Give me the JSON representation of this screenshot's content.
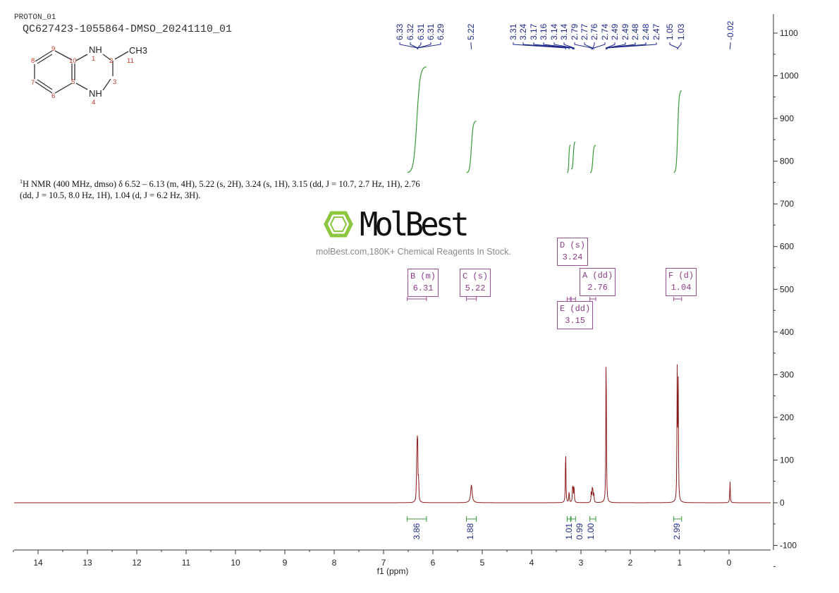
{
  "header": {
    "experiment": "PROTON_01",
    "sample": "QC627423-1055864-DMSO_20241110_01"
  },
  "structure": {
    "labels": [
      "NH",
      "NH",
      "CH3"
    ],
    "atom_numbers": [
      "1",
      "2",
      "3",
      "4",
      "5",
      "6",
      "7",
      "8",
      "9",
      "10",
      "11"
    ]
  },
  "description": {
    "nucleus_sup": "1",
    "text": "H NMR (400 MHz, dmso) δ 6.52 – 6.13 (m, 4H), 5.22 (s, 2H), 3.24 (s, 1H), 3.15 (dd, J = 10.7, 2.7 Hz, 1H), 2.76 (dd, J = 10.5, 8.0 Hz, 1H), 1.04 (d, J = 6.2 Hz, 3H)."
  },
  "watermark": {
    "logo_text": "MolBest",
    "tagline": "molBest.com,180K+ Chemical Reagents In Stock.",
    "color": "#8cc63f"
  },
  "chart_data": {
    "type": "line",
    "xlabel": "f1 (ppm)",
    "xlim": [
      14.5,
      -0.85
    ],
    "x_reversed": true,
    "ylim": [
      -100,
      1150
    ],
    "x_ticks": [
      "14",
      "13",
      "12",
      "11",
      "10",
      "9",
      "8",
      "7",
      "6",
      "5",
      "4",
      "3",
      "2",
      "1",
      "0"
    ],
    "y_ticks": [
      "1100",
      "1000",
      "900",
      "800",
      "700",
      "600",
      "500",
      "400",
      "300",
      "200",
      "100",
      "0",
      "-100"
    ],
    "grid": false,
    "line_color": "#8b1a1a",
    "integral_color": "#3a9a3a",
    "label_color": "#1f2a8c",
    "peaks": [
      {
        "ppm": 6.33,
        "height": 60
      },
      {
        "ppm": 6.32,
        "height": 90
      },
      {
        "ppm": 6.31,
        "height": 110
      },
      {
        "ppm": 6.31,
        "height": 40
      },
      {
        "ppm": 6.29,
        "height": 55
      },
      {
        "ppm": 5.22,
        "height": 42
      },
      {
        "ppm": 3.31,
        "height": 133
      },
      {
        "ppm": 3.24,
        "height": 28
      },
      {
        "ppm": 3.17,
        "height": 30
      },
      {
        "ppm": 3.16,
        "height": 30
      },
      {
        "ppm": 3.14,
        "height": 30
      },
      {
        "ppm": 3.14,
        "height": 10
      },
      {
        "ppm": 2.79,
        "height": 28
      },
      {
        "ppm": 2.77,
        "height": 28
      },
      {
        "ppm": 2.76,
        "height": 26
      },
      {
        "ppm": 2.74,
        "height": 24
      },
      {
        "ppm": 2.49,
        "height": 390
      },
      {
        "ppm": 1.05,
        "height": 300
      },
      {
        "ppm": 1.03,
        "height": 290
      },
      {
        "ppm": -0.02,
        "height": 52
      }
    ],
    "peak_labels": [
      {
        "group": [
          6.31
        ],
        "labels": [
          "6.33",
          "6.32",
          "6.31",
          "6.31",
          "6.29"
        ]
      },
      {
        "group": [
          5.22
        ],
        "labels": [
          "5.22"
        ]
      },
      {
        "group": [
          3.31,
          3.24,
          3.17,
          3.16,
          3.14,
          3.14,
          2.79,
          2.77,
          2.76,
          2.74,
          2.49,
          2.49,
          2.48,
          2.48,
          2.47
        ],
        "labels": [
          "3.31",
          "3.24",
          "3.17",
          "3.16",
          "3.14",
          "3.14",
          "2.79",
          "2.77",
          "2.76",
          "2.74",
          "2.49",
          "2.49",
          "2.48",
          "2.48",
          "2.47"
        ]
      },
      {
        "group": [
          1.04
        ],
        "labels": [
          "1.05",
          "1.03"
        ]
      },
      {
        "group": [
          -0.02
        ],
        "labels": [
          "-0.02"
        ]
      }
    ],
    "integrals": [
      {
        "from": 6.52,
        "to": 6.13,
        "value": "3.86"
      },
      {
        "from": 5.32,
        "to": 5.12,
        "value": "1.88"
      },
      {
        "from": 3.28,
        "to": 3.21,
        "value": "1.01"
      },
      {
        "from": 3.2,
        "to": 3.11,
        "value": "0.99"
      },
      {
        "from": 2.82,
        "to": 2.7,
        "value": "1.00"
      },
      {
        "from": 1.12,
        "to": 0.96,
        "value": "2.99"
      }
    ],
    "multiplets": [
      {
        "label": "B (m)",
        "shift": "6.31",
        "from": 6.52,
        "to": 6.13
      },
      {
        "label": "C (s)",
        "shift": "5.22",
        "from": 5.32,
        "to": 5.12
      },
      {
        "label": "D (s)",
        "shift": "3.24",
        "from": 3.28,
        "to": 3.21
      },
      {
        "label": "A (dd)",
        "shift": "2.76",
        "from": 2.82,
        "to": 2.7
      },
      {
        "label": "E (dd)",
        "shift": "3.15",
        "from": 3.2,
        "to": 3.11
      },
      {
        "label": "F (d)",
        "shift": "1.04",
        "from": 1.12,
        "to": 0.96
      }
    ]
  }
}
